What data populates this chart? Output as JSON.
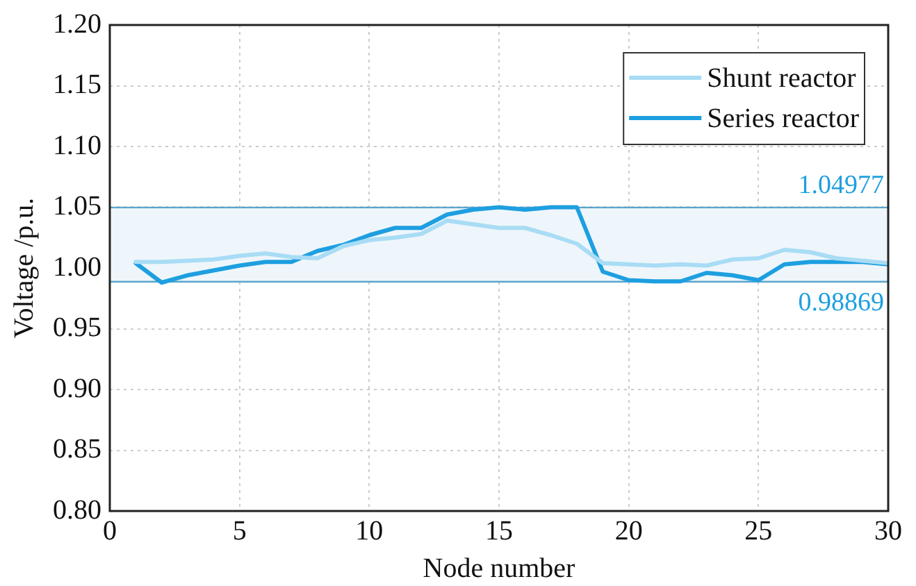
{
  "chart_data": {
    "type": "line",
    "xlabel": "Node number",
    "ylabel": "Voltage /p.u.",
    "x": [
      1,
      2,
      3,
      4,
      5,
      6,
      7,
      8,
      9,
      10,
      11,
      12,
      13,
      14,
      15,
      16,
      17,
      18,
      19,
      20,
      21,
      22,
      23,
      24,
      25,
      26,
      27,
      28,
      29,
      30
    ],
    "series": [
      {
        "name": "Shunt reactor",
        "color": "#a9dcf5",
        "values": [
          1.005,
          1.005,
          1.006,
          1.007,
          1.01,
          1.012,
          1.009,
          1.008,
          1.018,
          1.023,
          1.025,
          1.028,
          1.039,
          1.036,
          1.033,
          1.033,
          1.027,
          1.02,
          1.004,
          1.003,
          1.002,
          1.003,
          1.002,
          1.007,
          1.008,
          1.015,
          1.013,
          1.008,
          1.006,
          1.004
        ]
      },
      {
        "name": "Series reactor",
        "color": "#1e9fe0",
        "values": [
          1.004,
          0.988,
          0.994,
          0.998,
          1.002,
          1.005,
          1.005,
          1.014,
          1.019,
          1.027,
          1.033,
          1.033,
          1.044,
          1.048,
          1.05,
          1.048,
          1.05,
          1.05,
          0.997,
          0.99,
          0.989,
          0.989,
          0.996,
          0.994,
          0.99,
          1.003,
          1.005,
          1.005,
          1.005,
          1.003
        ]
      }
    ],
    "xlim": [
      0,
      30
    ],
    "xticks": [
      0,
      5,
      10,
      15,
      20,
      25,
      30
    ],
    "ylim": [
      0.8,
      1.2
    ],
    "yticks": [
      {
        "value": 0.8,
        "label": "0.80"
      },
      {
        "value": 0.85,
        "label": "0.85"
      },
      {
        "value": 0.9,
        "label": "0.90"
      },
      {
        "value": 0.95,
        "label": "0.95"
      },
      {
        "value": 1.0,
        "label": "1.00"
      },
      {
        "value": 1.05,
        "label": "1.05"
      },
      {
        "value": 1.1,
        "label": "1.10"
      },
      {
        "value": 1.15,
        "label": "1.15"
      },
      {
        "value": 1.2,
        "label": "1.20"
      }
    ],
    "bands": [
      {
        "axis": "y",
        "from": 0.98869,
        "to": 1.04977,
        "color": "#eef6fb"
      }
    ],
    "ref_lines": [
      {
        "axis": "y",
        "value": 1.04977,
        "label": "1.04977",
        "color": "#5aa5cc"
      },
      {
        "axis": "y",
        "value": 0.98869,
        "label": "0.98869",
        "color": "#5aa5cc"
      }
    ],
    "grid": true,
    "legend": "top right",
    "marker": "none",
    "line_style": "solid"
  }
}
